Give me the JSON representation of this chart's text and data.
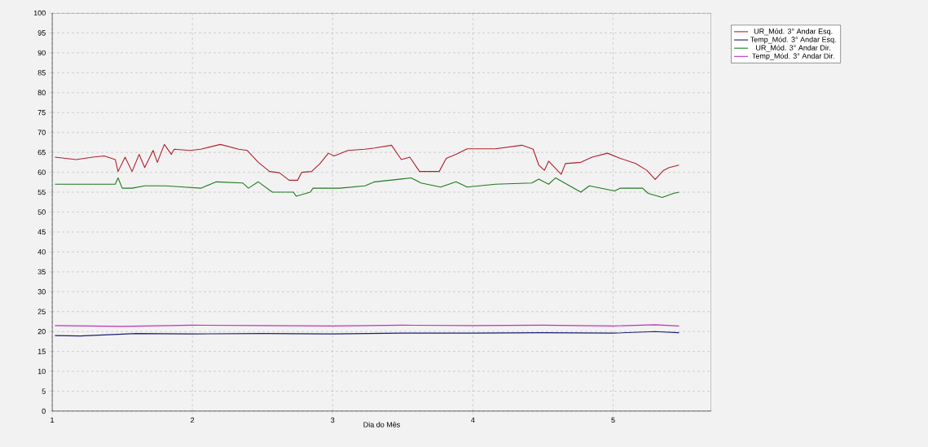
{
  "chart_data": {
    "type": "line",
    "xlabel": "Dia do Mês",
    "xlim": [
      1,
      5.7
    ],
    "xticks": [
      1,
      2,
      3,
      4,
      5
    ],
    "ylim": [
      0,
      100
    ],
    "yticks": [
      0,
      5,
      10,
      15,
      20,
      25,
      30,
      35,
      40,
      45,
      50,
      55,
      60,
      65,
      70,
      75,
      80,
      85,
      90,
      95,
      100
    ],
    "grid": true,
    "legend": "top right",
    "marker": "none",
    "line_style": "solid",
    "series": [
      {
        "name": "UR_Mód. 3° Andar Esq.",
        "color": "#b0202c",
        "x": [
          1.02,
          1.17,
          1.29,
          1.37,
          1.45,
          1.47,
          1.52,
          1.57,
          1.62,
          1.66,
          1.72,
          1.75,
          1.8,
          1.85,
          1.87,
          1.98,
          2.06,
          2.2,
          2.33,
          2.39,
          2.47,
          2.55,
          2.62,
          2.69,
          2.75,
          2.78,
          2.85,
          2.91,
          2.97,
          3.01,
          3.11,
          3.23,
          3.3,
          3.42,
          3.49,
          3.55,
          3.62,
          3.76,
          3.81,
          3.88,
          3.96,
          4.16,
          4.35,
          4.43,
          4.47,
          4.51,
          4.54,
          4.63,
          4.66,
          4.77,
          4.85,
          4.96,
          5.05,
          5.16,
          5.24,
          5.3,
          5.36,
          5.4,
          5.47
        ],
        "values": [
          63.8,
          63.2,
          63.8,
          64.1,
          63.2,
          60.2,
          63.8,
          60.2,
          64.5,
          61.2,
          65.5,
          62.5,
          67,
          64.5,
          65.8,
          65.5,
          65.8,
          67,
          65.8,
          65.5,
          62.5,
          60.2,
          59.9,
          58,
          58,
          60,
          60.2,
          62.2,
          64.8,
          64.1,
          65.5,
          65.8,
          66.1,
          66.8,
          63.2,
          63.8,
          60.2,
          60.2,
          63.5,
          64.5,
          65.9,
          65.9,
          66.8,
          65.8,
          61.8,
          60.5,
          62.8,
          59.5,
          62.2,
          62.5,
          63.8,
          64.8,
          63.5,
          62.2,
          60.5,
          58.2,
          60.5,
          61.2,
          61.8
        ]
      },
      {
        "name": "Temp_Mód. 3° Andar Esq.",
        "color": "#1c1c78",
        "x": [
          1.02,
          1.2,
          1.4,
          1.6,
          2.0,
          2.5,
          3.0,
          3.5,
          4.0,
          4.5,
          5.0,
          5.3,
          5.47
        ],
        "values": [
          19,
          18.9,
          19.2,
          19.5,
          19.4,
          19.5,
          19.4,
          19.6,
          19.6,
          19.7,
          19.6,
          20,
          19.7
        ]
      },
      {
        "name": "UR_Mód. 3° Andar Dir.",
        "color": "#1e7a1e",
        "x": [
          1.02,
          1.45,
          1.47,
          1.5,
          1.57,
          1.66,
          1.81,
          1.94,
          2.06,
          2.17,
          2.36,
          2.4,
          2.47,
          2.57,
          2.72,
          2.74,
          2.84,
          2.86,
          3.05,
          3.23,
          3.3,
          3.49,
          3.56,
          3.63,
          3.77,
          3.88,
          3.96,
          4.16,
          4.42,
          4.47,
          4.54,
          4.59,
          4.77,
          4.83,
          5.01,
          5.05,
          5.21,
          5.25,
          5.35,
          5.43,
          5.47
        ],
        "values": [
          57,
          57,
          58.6,
          56,
          56,
          56.6,
          56.6,
          56.3,
          56,
          57.6,
          57.3,
          56,
          57.6,
          55,
          55,
          54,
          55,
          56,
          56,
          56.6,
          57.6,
          58.3,
          58.6,
          57.3,
          56.3,
          57.6,
          56.3,
          57,
          57.3,
          58.3,
          57,
          58.6,
          55,
          56.6,
          55.3,
          56,
          56,
          54.7,
          53.7,
          54.7,
          55
        ]
      },
      {
        "name": "Temp_Mód. 3° Andar Dir.",
        "color": "#c030c0",
        "x": [
          1.02,
          1.5,
          2.0,
          2.5,
          3.0,
          3.5,
          4.0,
          4.5,
          5.0,
          5.3,
          5.47
        ],
        "values": [
          21.5,
          21.3,
          21.6,
          21.5,
          21.4,
          21.6,
          21.5,
          21.6,
          21.4,
          21.7,
          21.4
        ]
      }
    ]
  }
}
